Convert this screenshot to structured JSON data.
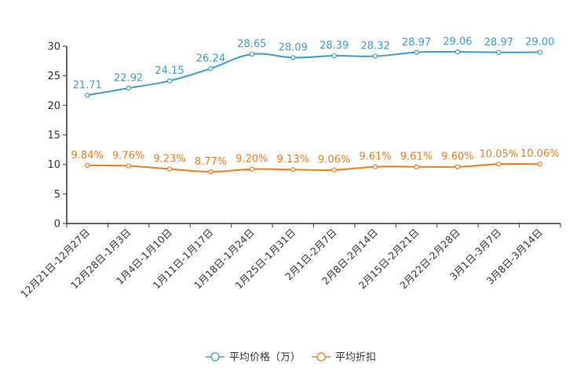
{
  "chart_data": {
    "type": "line",
    "categories": [
      "12月21日-12月27日",
      "12月28日-1月3日",
      "1月4日-1月10日",
      "1月11日-1月17日",
      "1月18日-1月24日",
      "1月25日-1月31日",
      "2月1日-2月7日",
      "2月8日-2月14日",
      "2月15日-2月21日",
      "2月22日-2月28日",
      "3月1日-3月7日",
      "3月8日-3月14日"
    ],
    "ylim": [
      0,
      30
    ],
    "yticks": [
      "0",
      "5",
      "10",
      "15",
      "20",
      "25",
      "30"
    ],
    "series": [
      {
        "name": "平均价格（万）",
        "color": "#3b9bd4",
        "values": [
          21.71,
          22.92,
          24.15,
          26.24,
          28.65,
          28.09,
          28.39,
          28.32,
          28.97,
          29.06,
          28.97,
          29.0
        ],
        "labels": [
          "21.71",
          "22.92",
          "24.15",
          "26.24",
          "28.65",
          "28.09",
          "28.39",
          "28.32",
          "28.97",
          "29.06",
          "28.97",
          "29.00"
        ]
      },
      {
        "name": "平均折扣",
        "color": "#f07c1e",
        "values": [
          9.84,
          9.76,
          9.23,
          8.77,
          9.2,
          9.13,
          9.06,
          9.61,
          9.61,
          9.6,
          10.05,
          10.06
        ],
        "labels": [
          "9.84%",
          "9.76%",
          "9.23%",
          "8.77%",
          "9.20%",
          "9.13%",
          "9.06%",
          "9.61%",
          "9.61%",
          "9.60%",
          "10.05%",
          "10.06%"
        ]
      }
    ],
    "legend": [
      "平均价格（万）",
      "平均折扣"
    ],
    "legend_position": "bottom-center"
  }
}
